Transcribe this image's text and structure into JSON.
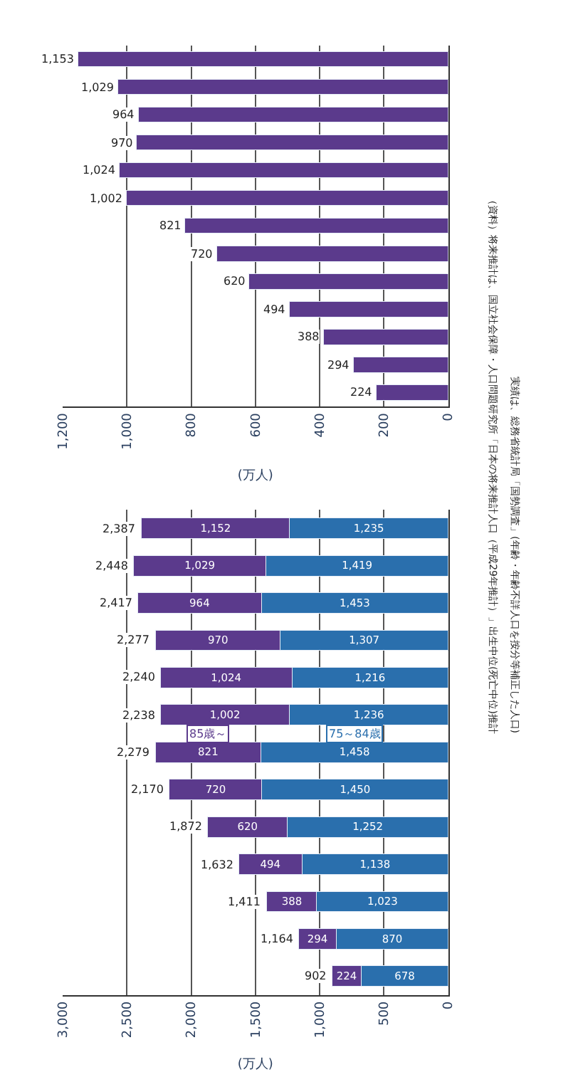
{
  "chart_data": [
    {
      "type": "bar",
      "orientation": "horizontal",
      "xlabel": "(万人)",
      "categories": [
        null,
        null,
        null,
        null,
        null,
        null,
        null,
        null,
        null,
        null,
        null,
        null,
        null
      ],
      "series": [
        {
          "color": "#5b3a8c",
          "values": [
            1153,
            1029,
            964,
            970,
            1024,
            1002,
            821,
            720,
            620,
            494,
            388,
            294,
            224
          ],
          "value_labels": [
            "1,153",
            "1,029",
            "964",
            "970",
            "1,024",
            "1,002",
            "821",
            "720",
            "620",
            "494",
            "388",
            "294",
            "224"
          ]
        }
      ],
      "xlim": [
        1200,
        0
      ],
      "xticks": [
        {
          "value": 1200,
          "label": "1,200"
        },
        {
          "value": 1000,
          "label": "1,000"
        },
        800,
        600,
        400,
        200,
        0
      ],
      "grid": "x"
    },
    {
      "type": "bar",
      "orientation": "horizontal",
      "stacked": true,
      "xlabel": "(万人)",
      "categories": [
        null,
        null,
        null,
        null,
        null,
        null,
        null,
        null,
        null,
        null,
        null,
        null,
        null
      ],
      "series": [
        {
          "name": "75～84歳",
          "color": "#2a6fad",
          "values": [
            1235,
            1419,
            1453,
            1307,
            1216,
            1236,
            1458,
            1450,
            1252,
            1138,
            1023,
            870,
            678
          ],
          "value_labels": [
            "1,235",
            "1,419",
            "1,453",
            "1,307",
            "1,216",
            "1,236",
            "1,458",
            "1,450",
            "1,252",
            "1,138",
            "1,023",
            "870",
            "678"
          ]
        },
        {
          "name": "85歳～",
          "color": "#5b3a8c",
          "values": [
            1152,
            1029,
            964,
            970,
            1024,
            1002,
            821,
            720,
            620,
            494,
            388,
            294,
            224
          ],
          "value_labels": [
            "1,152",
            "1,029",
            "964",
            "970",
            "1,024",
            "1,002",
            "821",
            "720",
            "620",
            "494",
            "388",
            "294",
            "224"
          ]
        }
      ],
      "totals": [
        "2,387",
        "2,448",
        "2,417",
        "2,277",
        "2,240",
        "2,238",
        "2,279",
        "2,170",
        "1,872",
        "1,632",
        "1,411",
        "1,164",
        "902"
      ],
      "xlim": [
        3000,
        0
      ],
      "xticks": [
        {
          "value": 3000,
          "label": "3,000"
        },
        {
          "value": 2500,
          "label": "2,500"
        },
        {
          "value": 2000,
          "label": "2,000"
        },
        {
          "value": 1500,
          "label": "1,500"
        },
        {
          "value": 1000,
          "label": "1,000"
        },
        500,
        0
      ],
      "grid": "x",
      "annotations": [
        "（資料）将来推計は、国立社会保障・人口問題研究所「日本の将来推計人口（平成29年推計）」出生中位(死亡中位)推計",
        "実績は、総務省統計局「国勢調査」(年齢・年齢不詳人口を按分等補正した人口)"
      ]
    }
  ]
}
